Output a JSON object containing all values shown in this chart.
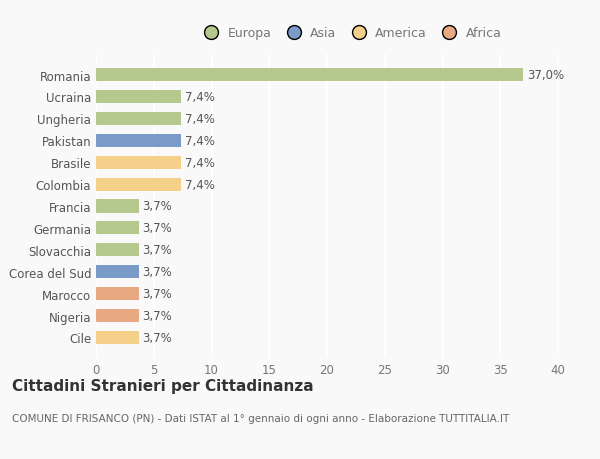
{
  "categories": [
    "Romania",
    "Ucraina",
    "Ungheria",
    "Pakistan",
    "Brasile",
    "Colombia",
    "Francia",
    "Germania",
    "Slovacchia",
    "Corea del Sud",
    "Marocco",
    "Nigeria",
    "Cile"
  ],
  "values": [
    37.0,
    7.4,
    7.4,
    7.4,
    7.4,
    7.4,
    3.7,
    3.7,
    3.7,
    3.7,
    3.7,
    3.7,
    3.7
  ],
  "labels": [
    "37,0%",
    "7,4%",
    "7,4%",
    "7,4%",
    "7,4%",
    "7,4%",
    "3,7%",
    "3,7%",
    "3,7%",
    "3,7%",
    "3,7%",
    "3,7%",
    "3,7%"
  ],
  "colors": [
    "#b5c98e",
    "#b5c98e",
    "#b5c98e",
    "#7a9ac7",
    "#f5d08a",
    "#f5d08a",
    "#b5c98e",
    "#b5c98e",
    "#b5c98e",
    "#7a9ac7",
    "#e8a882",
    "#e8a882",
    "#f5d08a"
  ],
  "continent_colors": {
    "Europa": "#b5c98e",
    "Asia": "#7a9ac7",
    "America": "#f5d08a",
    "Africa": "#e8a882"
  },
  "xlim": [
    0,
    40
  ],
  "xticks": [
    0,
    5,
    10,
    15,
    20,
    25,
    30,
    35,
    40
  ],
  "title": "Cittadini Stranieri per Cittadinanza",
  "subtitle": "COMUNE DI FRISANCO (PN) - Dati ISTAT al 1° gennaio di ogni anno - Elaborazione TUTTITALIA.IT",
  "bg_color": "#f9f9f9",
  "grid_color": "#ffffff",
  "bar_height": 0.6,
  "label_fontsize": 8.5,
  "tick_fontsize": 8.5,
  "title_fontsize": 11,
  "subtitle_fontsize": 7.5
}
